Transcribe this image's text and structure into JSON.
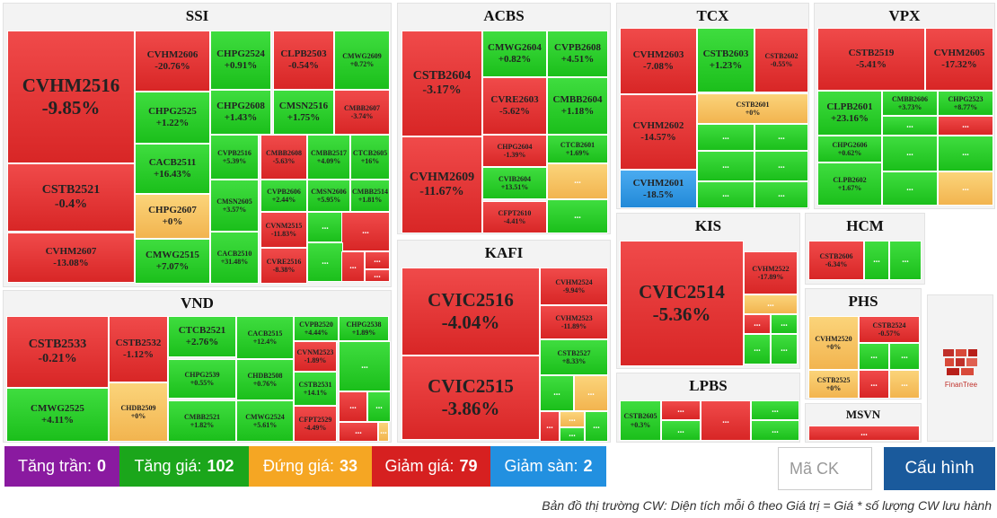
{
  "panels": [
    {
      "title": "SSI",
      "tiles": [
        {
          "code": "CVHM2516",
          "pct": "-9.85%",
          "c": "r"
        },
        {
          "code": "CSTB2521",
          "pct": "-0.4%",
          "c": "r"
        },
        {
          "code": "CVHM2607",
          "pct": "-13.08%",
          "c": "r"
        },
        {
          "code": "CVHM2606",
          "pct": "-20.76%",
          "c": "r"
        },
        {
          "code": "CHPG2525",
          "pct": "+1.22%",
          "c": "g"
        },
        {
          "code": "CACB2511",
          "pct": "+16.43%",
          "c": "g"
        },
        {
          "code": "CHPG2607",
          "pct": "+0%",
          "c": "y"
        },
        {
          "code": "CMWG2515",
          "pct": "+7.07%",
          "c": "g"
        },
        {
          "code": "CHPG2524",
          "pct": "+0.91%",
          "c": "g"
        },
        {
          "code": "CLPB2503",
          "pct": "-0.54%",
          "c": "r"
        },
        {
          "code": "CMWG2609",
          "pct": "+0.72%",
          "c": "g"
        },
        {
          "code": "CHPG2608",
          "pct": "+1.43%",
          "c": "g"
        },
        {
          "code": "CMSN2516",
          "pct": "+1.75%",
          "c": "g"
        },
        {
          "code": "CMBB2607",
          "pct": "-3.74%",
          "c": "r"
        },
        {
          "code": "CVPB2516",
          "pct": "+5.39%",
          "c": "g"
        },
        {
          "code": "CMSN2605",
          "pct": "+3.57%",
          "c": "g"
        },
        {
          "code": "CACB2510",
          "pct": "+31.48%",
          "c": "g"
        },
        {
          "code": "CMBB2608",
          "pct": "-5.63%",
          "c": "r"
        },
        {
          "code": "CMBB2517",
          "pct": "+4.09%",
          "c": "g"
        },
        {
          "code": "CTCB2605",
          "pct": "+16%",
          "c": "g"
        },
        {
          "code": "CVPB2606",
          "pct": "+2.44%",
          "c": "g"
        },
        {
          "code": "CMSN2606",
          "pct": "+5.95%",
          "c": "g"
        },
        {
          "code": "CMBB2514",
          "pct": "+1.81%",
          "c": "g"
        },
        {
          "code": "CVNM2515",
          "pct": "-11.83%",
          "c": "r"
        },
        {
          "code": "CVRE2516",
          "pct": "-8.38%",
          "c": "r"
        }
      ]
    },
    {
      "title": "ACBS",
      "tiles": [
        {
          "code": "CSTB2604",
          "pct": "-3.17%",
          "c": "r"
        },
        {
          "code": "CVHM2609",
          "pct": "-11.67%",
          "c": "r"
        },
        {
          "code": "CMWG2604",
          "pct": "+0.82%",
          "c": "g"
        },
        {
          "code": "CVPB2608",
          "pct": "+4.51%",
          "c": "g"
        },
        {
          "code": "CVRE2603",
          "pct": "-5.62%",
          "c": "r"
        },
        {
          "code": "CMBB2604",
          "pct": "+1.18%",
          "c": "g"
        },
        {
          "code": "CHPG2604",
          "pct": "-1.39%",
          "c": "r"
        },
        {
          "code": "CTCB2601",
          "pct": "+1.69%",
          "c": "g"
        },
        {
          "code": "CVIB2604",
          "pct": "+13.51%",
          "c": "g"
        },
        {
          "code": "CFPT2610",
          "pct": "-4.41%",
          "c": "r"
        }
      ]
    },
    {
      "title": "TCX",
      "tiles": [
        {
          "code": "CVHM2603",
          "pct": "-7.08%",
          "c": "r"
        },
        {
          "code": "CSTB2603",
          "pct": "+1.23%",
          "c": "g"
        },
        {
          "code": "CSTB2602",
          "pct": "-0.55%",
          "c": "r"
        },
        {
          "code": "CVHM2602",
          "pct": "-14.57%",
          "c": "r"
        },
        {
          "code": "CSTB2601",
          "pct": "+0%",
          "c": "y"
        },
        {
          "code": "CVHM2601",
          "pct": "-18.5%",
          "c": "b"
        }
      ]
    },
    {
      "title": "VPX",
      "tiles": [
        {
          "code": "CSTB2519",
          "pct": "-5.41%",
          "c": "r"
        },
        {
          "code": "CVHM2605",
          "pct": "-17.32%",
          "c": "r"
        },
        {
          "code": "CLPB2601",
          "pct": "+23.16%",
          "c": "g"
        },
        {
          "code": "CMBB2606",
          "pct": "+3.73%",
          "c": "g"
        },
        {
          "code": "CHPG2523",
          "pct": "+8.77%",
          "c": "g"
        },
        {
          "code": "CHPG2606",
          "pct": "+0.62%",
          "c": "g"
        },
        {
          "code": "CLPB2602",
          "pct": "+1.67%",
          "c": "g"
        }
      ]
    },
    {
      "title": "VND",
      "tiles": [
        {
          "code": "CSTB2533",
          "pct": "-0.21%",
          "c": "r"
        },
        {
          "code": "CMWG2525",
          "pct": "+4.11%",
          "c": "g"
        },
        {
          "code": "CSTB2532",
          "pct": "-1.12%",
          "c": "r"
        },
        {
          "code": "CHDB2509",
          "pct": "+0%",
          "c": "y"
        },
        {
          "code": "CTCB2521",
          "pct": "+2.76%",
          "c": "g"
        },
        {
          "code": "CHPG2539",
          "pct": "+0.55%",
          "c": "g"
        },
        {
          "code": "CMBB2521",
          "pct": "+1.82%",
          "c": "g"
        },
        {
          "code": "CACB2515",
          "pct": "+12.4%",
          "c": "g"
        },
        {
          "code": "CHDB2508",
          "pct": "+0.76%",
          "c": "g"
        },
        {
          "code": "CMWG2524",
          "pct": "+5.61%",
          "c": "g"
        },
        {
          "code": "CVPB2520",
          "pct": "+4.44%",
          "c": "g"
        },
        {
          "code": "CHPG2538",
          "pct": "+1.89%",
          "c": "g"
        },
        {
          "code": "CVNM2523",
          "pct": "-1.89%",
          "c": "r"
        },
        {
          "code": "CSTB2531",
          "pct": "+14.1%",
          "c": "g"
        },
        {
          "code": "CFPT2529",
          "pct": "-4.49%",
          "c": "r"
        }
      ]
    },
    {
      "title": "KAFI",
      "tiles": [
        {
          "code": "CVIC2516",
          "pct": "-4.04%",
          "c": "r"
        },
        {
          "code": "CVIC2515",
          "pct": "-3.86%",
          "c": "r"
        },
        {
          "code": "CVHM2524",
          "pct": "-9.94%",
          "c": "r"
        },
        {
          "code": "CVHM2523",
          "pct": "-11.89%",
          "c": "r"
        },
        {
          "code": "CSTB2527",
          "pct": "+8.33%",
          "c": "g"
        }
      ]
    },
    {
      "title": "KIS",
      "tiles": [
        {
          "code": "CVIC2514",
          "pct": "-5.36%",
          "c": "r"
        },
        {
          "code": "CVHM2522",
          "pct": "-17.89%",
          "c": "r"
        }
      ]
    },
    {
      "title": "HCM",
      "tiles": [
        {
          "code": "CSTB2606",
          "pct": "-6.34%",
          "c": "r"
        }
      ]
    },
    {
      "title": "PHS",
      "tiles": [
        {
          "code": "CVHM2520",
          "pct": "+0%",
          "c": "y"
        },
        {
          "code": "CSTB2524",
          "pct": "-0.57%",
          "c": "r"
        },
        {
          "code": "CSTB2525",
          "pct": "+0%",
          "c": "y"
        }
      ]
    },
    {
      "title": "LPBS",
      "tiles": [
        {
          "code": "CSTB2605",
          "pct": "+0.3%",
          "c": "g"
        }
      ]
    },
    {
      "title": "MSVN",
      "tiles": []
    }
  ],
  "ellipsis": "...",
  "stats": [
    {
      "label": "Tăng trần:",
      "value": "0",
      "color": "#8a1aa0"
    },
    {
      "label": "Tăng giá:",
      "value": "102",
      "color": "#1ba61b"
    },
    {
      "label": "Đứng giá:",
      "value": "33",
      "color": "#f5a623"
    },
    {
      "label": "Giảm giá:",
      "value": "79",
      "color": "#d62020"
    },
    {
      "label": "Giảm sàn:",
      "value": "2",
      "color": "#2290e0"
    }
  ],
  "search": {
    "placeholder": "Mã CK"
  },
  "config_label": "Cấu hình",
  "caption": "Bản đồ thị trường CW: Diện tích mỗi ô theo Giá trị = Giá * số lượng CW lưu hành",
  "logo_text": "FinanTree"
}
